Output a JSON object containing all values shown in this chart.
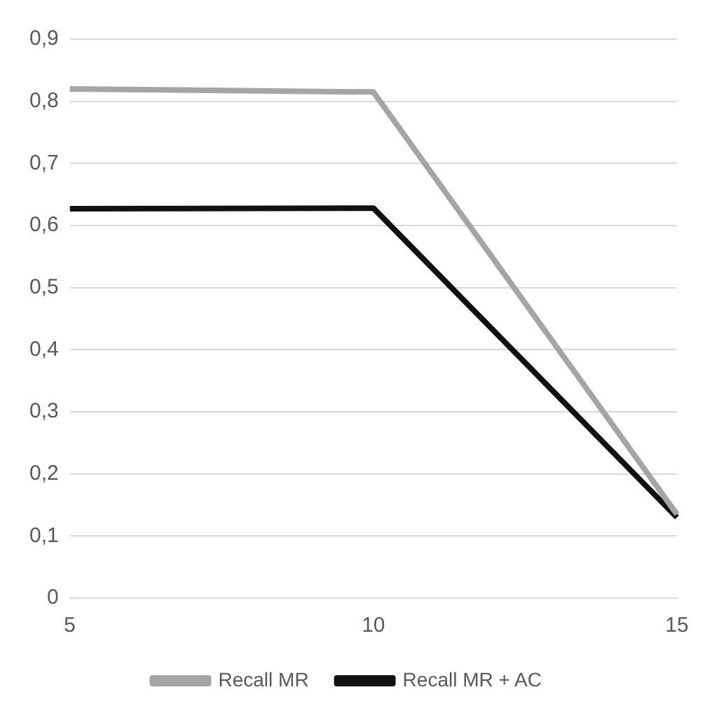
{
  "chart_data": {
    "type": "line",
    "categories": [
      "5",
      "10",
      "15"
    ],
    "series": [
      {
        "name": "Recall MR",
        "color": "#a5a5a5",
        "values": [
          0.82,
          0.815,
          0.135
        ]
      },
      {
        "name": "Recall MR + AC",
        "color": "#111111",
        "values": [
          0.627,
          0.628,
          0.13
        ]
      }
    ],
    "ylim": [
      0,
      0.9
    ],
    "yticks": [
      0,
      {
        "value": 0.1,
        "label": "0,1"
      },
      {
        "value": 0.2,
        "label": "0,2"
      },
      {
        "value": 0.3,
        "label": "0,3"
      },
      {
        "value": 0.4,
        "label": "0,4"
      },
      {
        "value": 0.5,
        "label": "0,5"
      },
      {
        "value": 0.6,
        "label": "0,6"
      },
      {
        "value": 0.7,
        "label": "0,7"
      },
      {
        "value": 0.8,
        "label": "0,8"
      },
      {
        "value": 0.9,
        "label": "0,9"
      }
    ],
    "grid": "y",
    "legend": "bottom",
    "marker": "none",
    "line_style": "solid"
  }
}
